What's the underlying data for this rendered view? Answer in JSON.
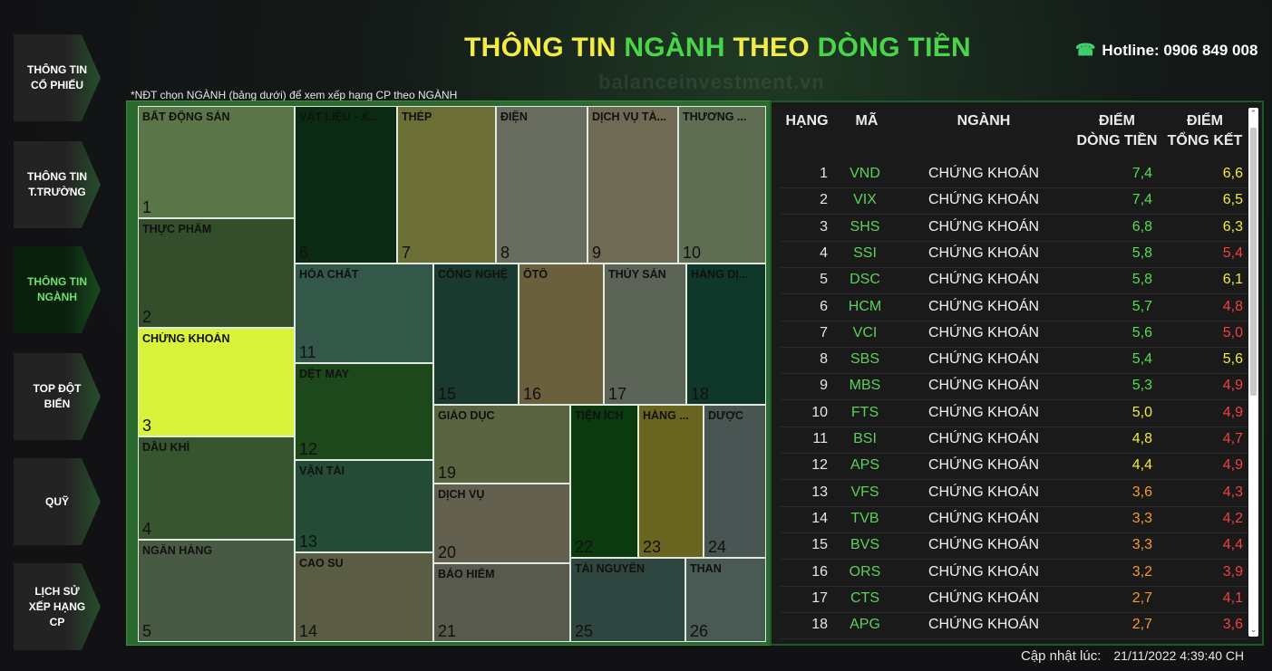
{
  "watermark": "balanceinvestment.vn",
  "nav": [
    {
      "label": "THÔNG TIN CỔ PHIẾU",
      "active": false
    },
    {
      "label": "THÔNG TIN T.TRƯỜNG",
      "active": false
    },
    {
      "label": "THÔNG TIN NGÀNH",
      "active": true
    },
    {
      "label": "TOP ĐỘT BIẾN",
      "active": false
    },
    {
      "label": "QUỸ",
      "active": false
    },
    {
      "label": "LỊCH SỬ XẾP HẠNG CP",
      "active": false
    }
  ],
  "title": {
    "part1": "THÔNG TIN",
    "part2": "NGÀNH",
    "part3": "THEO",
    "part4": "DÒNG TIỀN"
  },
  "hotline": "Hotline: 0906 849 008",
  "note": "*NĐT chọn NGÀNH (bảng dưới) để xem xếp hạng CP theo NGÀNH",
  "sectors": [
    {
      "rank": "1",
      "name": "BẤT ĐỘNG SẢN",
      "color": "#5a7548"
    },
    {
      "rank": "2",
      "name": "THỰC PHẨM",
      "color": "#344d2a"
    },
    {
      "rank": "3",
      "name": "CHỨNG KHOÁN",
      "color": "#d9f23a"
    },
    {
      "rank": "4",
      "name": "DẦU KHÍ",
      "color": "#37552e"
    },
    {
      "rank": "5",
      "name": "NGÂN HÀNG",
      "color": "#495a44"
    },
    {
      "rank": "6",
      "name": "VẬT LIỆU - X...",
      "color": "#0b2a13"
    },
    {
      "rank": "7",
      "name": "THÉP",
      "color": "#6b6f35"
    },
    {
      "rank": "8",
      "name": "ĐIỆN",
      "color": "#676c5f"
    },
    {
      "rank": "9",
      "name": "DỊCH VỤ TÀ...",
      "color": "#6e6a53"
    },
    {
      "rank": "10",
      "name": "THƯƠNG ...",
      "color": "#5f6e53"
    },
    {
      "rank": "11",
      "name": "HÓA CHẤT",
      "color": "#33584a"
    },
    {
      "rank": "12",
      "name": "DỆT MAY",
      "color": "#1d481b"
    },
    {
      "rank": "13",
      "name": "VẬN TẢI",
      "color": "#234b35"
    },
    {
      "rank": "14",
      "name": "CAO SU",
      "color": "#5a5c43"
    },
    {
      "rank": "15",
      "name": "CÔNG NGHỆ",
      "color": "#1a3a30"
    },
    {
      "rank": "16",
      "name": "ÔTÔ",
      "color": "#6a603b"
    },
    {
      "rank": "17",
      "name": "THỦY SẢN",
      "color": "#5c6357"
    },
    {
      "rank": "18",
      "name": "HÀNG DỊ...",
      "color": "#10382a"
    },
    {
      "rank": "19",
      "name": "GIÁO DỤC",
      "color": "#5a6440"
    },
    {
      "rank": "20",
      "name": "DỊCH VỤ",
      "color": "#636050"
    },
    {
      "rank": "21",
      "name": "BẢO HIỂM",
      "color": "#575a4c"
    },
    {
      "rank": "22",
      "name": "TIỆN ÍCH",
      "color": "#0b3a0e"
    },
    {
      "rank": "23",
      "name": "HÀNG ...",
      "color": "#6a6520"
    },
    {
      "rank": "24",
      "name": "DƯỢC",
      "color": "#485553"
    },
    {
      "rank": "25",
      "name": "TÀI NGUYÊN",
      "color": "#2f4640"
    },
    {
      "rank": "26",
      "name": "THAN",
      "color": "#495a54"
    }
  ],
  "table": {
    "headers": {
      "rank": "HẠNG",
      "code": "MÃ",
      "sector": "NGÀNH",
      "flow1": "ĐIỂM",
      "flow2": "DÒNG TIỀN",
      "total1": "ĐIỂM",
      "total2": "TỔNG KẾT"
    },
    "rows": [
      {
        "rank": "1",
        "code": "VND",
        "sector": "CHỨNG KHOÁN",
        "flow": "7,4",
        "flow_color": "#4fe04f",
        "total": "6,6",
        "total_color": "#f3ea3c"
      },
      {
        "rank": "2",
        "code": "VIX",
        "sector": "CHỨNG KHOÁN",
        "flow": "7,4",
        "flow_color": "#4fe04f",
        "total": "6,5",
        "total_color": "#f3ea3c"
      },
      {
        "rank": "3",
        "code": "SHS",
        "sector": "CHỨNG KHOÁN",
        "flow": "6,8",
        "flow_color": "#4fe04f",
        "total": "6,3",
        "total_color": "#f3ea3c"
      },
      {
        "rank": "4",
        "code": "SSI",
        "sector": "CHỨNG KHOÁN",
        "flow": "5,8",
        "flow_color": "#4fe04f",
        "total": "5,4",
        "total_color": "#f24040"
      },
      {
        "rank": "5",
        "code": "DSC",
        "sector": "CHỨNG KHOÁN",
        "flow": "5,8",
        "flow_color": "#4fe04f",
        "total": "6,1",
        "total_color": "#f3ea3c"
      },
      {
        "rank": "6",
        "code": "HCM",
        "sector": "CHỨNG KHOÁN",
        "flow": "5,7",
        "flow_color": "#4fe04f",
        "total": "4,8",
        "total_color": "#f24040"
      },
      {
        "rank": "7",
        "code": "VCI",
        "sector": "CHỨNG KHOÁN",
        "flow": "5,6",
        "flow_color": "#4fe04f",
        "total": "5,0",
        "total_color": "#f24040"
      },
      {
        "rank": "8",
        "code": "SBS",
        "sector": "CHỨNG KHOÁN",
        "flow": "5,4",
        "flow_color": "#4fe04f",
        "total": "5,6",
        "total_color": "#f3ea3c"
      },
      {
        "rank": "9",
        "code": "MBS",
        "sector": "CHỨNG KHOÁN",
        "flow": "5,3",
        "flow_color": "#4fe04f",
        "total": "4,9",
        "total_color": "#f24040"
      },
      {
        "rank": "10",
        "code": "FTS",
        "sector": "CHỨNG KHOÁN",
        "flow": "5,0",
        "flow_color": "#f3ea3c",
        "total": "4,9",
        "total_color": "#f24040"
      },
      {
        "rank": "11",
        "code": "BSI",
        "sector": "CHỨNG KHOÁN",
        "flow": "4,8",
        "flow_color": "#f3ea3c",
        "total": "4,7",
        "total_color": "#f24040"
      },
      {
        "rank": "12",
        "code": "APS",
        "sector": "CHỨNG KHOÁN",
        "flow": "4,4",
        "flow_color": "#f3ea3c",
        "total": "4,9",
        "total_color": "#f24040"
      },
      {
        "rank": "13",
        "code": "VFS",
        "sector": "CHỨNG KHOÁN",
        "flow": "3,6",
        "flow_color": "#f59a2c",
        "total": "4,3",
        "total_color": "#f24040"
      },
      {
        "rank": "14",
        "code": "TVB",
        "sector": "CHỨNG KHOÁN",
        "flow": "3,3",
        "flow_color": "#f59a2c",
        "total": "4,2",
        "total_color": "#f24040"
      },
      {
        "rank": "15",
        "code": "BVS",
        "sector": "CHỨNG KHOÁN",
        "flow": "3,3",
        "flow_color": "#f59a2c",
        "total": "4,4",
        "total_color": "#f24040"
      },
      {
        "rank": "16",
        "code": "ORS",
        "sector": "CHỨNG KHOÁN",
        "flow": "3,2",
        "flow_color": "#f59a2c",
        "total": "3,9",
        "total_color": "#f24040"
      },
      {
        "rank": "17",
        "code": "CTS",
        "sector": "CHỨNG KHOÁN",
        "flow": "2,7",
        "flow_color": "#f59a2c",
        "total": "4,1",
        "total_color": "#f24040"
      },
      {
        "rank": "18",
        "code": "APG",
        "sector": "CHỨNG KHOÁN",
        "flow": "2,7",
        "flow_color": "#f59a2c",
        "total": "3,6",
        "total_color": "#f24040"
      }
    ]
  },
  "footer": {
    "label": "Cập nhật lúc:",
    "timestamp": "21/11/2022 4:39:40 CH"
  }
}
